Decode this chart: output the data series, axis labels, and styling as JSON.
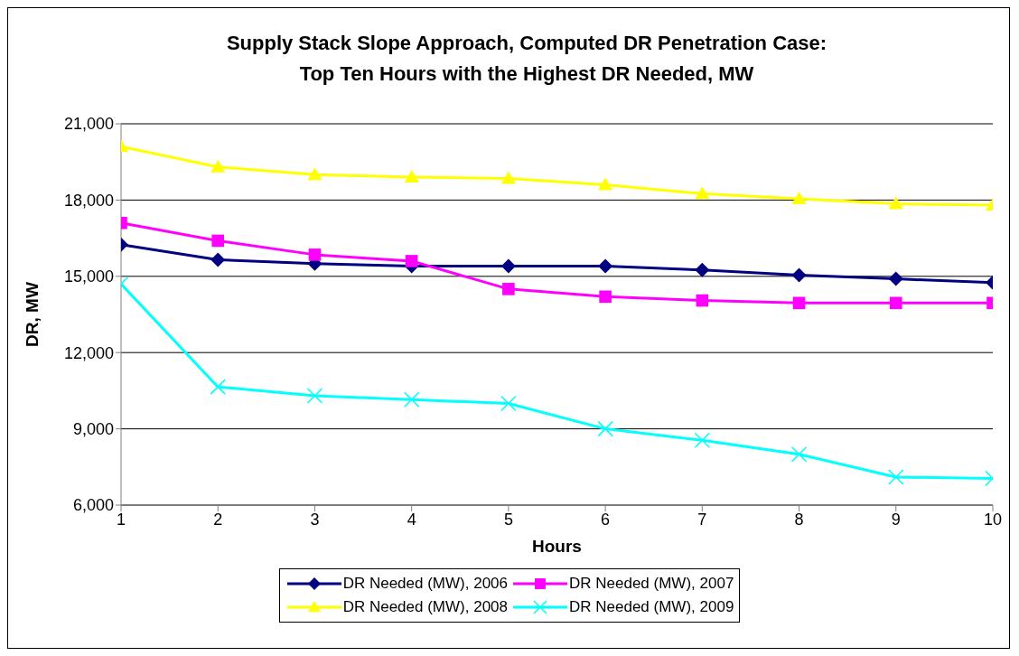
{
  "chart_data": {
    "type": "line",
    "title": "Supply Stack Slope Approach, Computed DR Penetration Case:\nTop Ten Hours with the Highest DR Needed, MW",
    "xlabel": "Hours",
    "ylabel": "DR, MW",
    "x": [
      1,
      2,
      3,
      4,
      5,
      6,
      7,
      8,
      9,
      10
    ],
    "xlim": [
      1,
      10
    ],
    "xticks": [
      1,
      2,
      3,
      4,
      5,
      6,
      7,
      8,
      9,
      10
    ],
    "ylim": [
      6000,
      21000
    ],
    "yticks": [
      {
        "value": 6000,
        "label": "6,000"
      },
      {
        "value": 9000,
        "label": "9,000"
      },
      {
        "value": 12000,
        "label": "12,000"
      },
      {
        "value": 15000,
        "label": "15,000"
      },
      {
        "value": 18000,
        "label": "18,000"
      },
      {
        "value": 21000,
        "label": "21,000"
      }
    ],
    "grid": "y",
    "legend": "bottom",
    "line_style": "solid",
    "series": [
      {
        "name": "DR Needed (MW), 2006",
        "color": "#000080",
        "marker": "diamond",
        "values": [
          16250,
          15650,
          15500,
          15400,
          15400,
          15400,
          15250,
          15050,
          14900,
          14750
        ]
      },
      {
        "name": "DR Needed (MW), 2007",
        "color": "#ff00ff",
        "marker": "square",
        "values": [
          17100,
          16400,
          15850,
          15600,
          14500,
          14200,
          14050,
          13950,
          13950,
          13950
        ]
      },
      {
        "name": "DR Needed (MW), 2008",
        "color": "#ffff00",
        "marker": "triangle",
        "values": [
          20100,
          19300,
          19000,
          18900,
          18850,
          18600,
          18250,
          18050,
          17850,
          17800
        ]
      },
      {
        "name": "DR Needed (MW), 2009",
        "color": "#00ffff",
        "marker": "cross",
        "values": [
          14700,
          10650,
          10300,
          10150,
          10000,
          9000,
          8550,
          8000,
          7100,
          7050
        ]
      }
    ]
  }
}
